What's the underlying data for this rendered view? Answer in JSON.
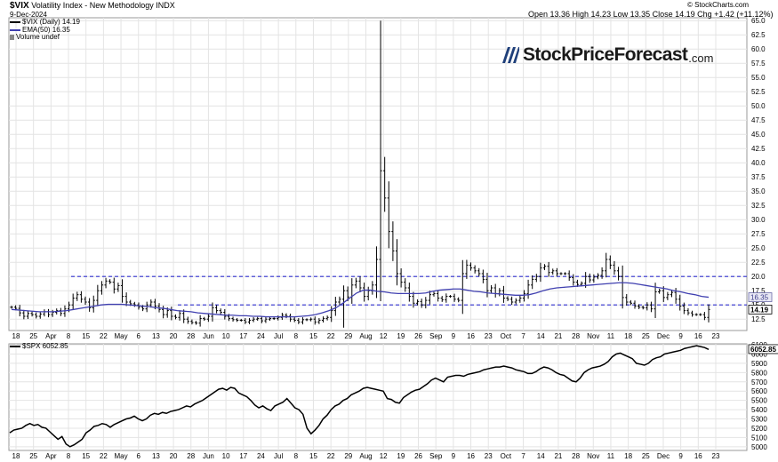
{
  "header": {
    "symbol": "$VIX",
    "name": "Volatility Index - New Methodology",
    "exchange": "INDX",
    "date": "9-Dec-2024",
    "ohlc_text": "Open 13.36  High 14.23  Low 13.35  Close 14.19  Chg +1.42 (+11.12%)",
    "source": "© StockCharts.com"
  },
  "legend": {
    "vix": "$VIX (Daily) 14.19",
    "ema": "EMA(50) 16.35",
    "volume": "Volume undef"
  },
  "spx_legend": "$SPX 6052.85",
  "logo": {
    "main": "StockPriceForecast",
    "suffix": ".com"
  },
  "colors": {
    "ema": "#4040b0",
    "dashed": "#3030d0",
    "price": "#000000",
    "grid": "#e4e4e4"
  },
  "chart_data": [
    {
      "type": "line",
      "title": "$VIX",
      "y_ticks": [
        "12.5",
        "15.0",
        "17.5",
        "20.0",
        "22.5",
        "25.0",
        "27.5",
        "30.0",
        "32.5",
        "35.0",
        "37.5",
        "40.0",
        "42.5",
        "45.0",
        "47.5",
        "50.0",
        "52.5",
        "55.0",
        "57.5",
        "60.0",
        "62.5",
        "65.0"
      ],
      "ylim": [
        10.5,
        65.5
      ],
      "last_value_labels": [
        {
          "value": 14.19,
          "label": "14.19",
          "style": "dark"
        },
        {
          "value": 16.35,
          "label": "16.35",
          "style": "light"
        }
      ],
      "horizontal_lines": [
        20.0,
        15.0
      ],
      "x_tick_labels": [
        "18",
        "25",
        "Apr",
        "8",
        "15",
        "22",
        "May",
        "6",
        "13",
        "20",
        "28",
        "Jun",
        "10",
        "17",
        "24",
        "Jul",
        "8",
        "15",
        "22",
        "29",
        "Aug",
        "12",
        "19",
        "26",
        "Sep",
        "9",
        "16",
        "23",
        "Oct",
        "7",
        "14",
        "21",
        "28",
        "Nov",
        "11",
        "18",
        "25",
        "Dec",
        "9",
        "16",
        "23"
      ],
      "series": [
        {
          "name": "$VIX",
          "kind": "ohlc",
          "values": [
            14.6,
            14.4,
            13.6,
            13.0,
            13.5,
            13.3,
            13.0,
            13.4,
            13.8,
            13.3,
            13.7,
            14.0,
            13.5,
            14.3,
            15.0,
            16.2,
            16.8,
            16.0,
            15.5,
            14.5,
            15.8,
            17.5,
            18.5,
            19.2,
            19.0,
            17.8,
            18.4,
            16.5,
            15.5,
            15.2,
            15.0,
            14.6,
            14.3,
            15.0,
            15.5,
            14.8,
            14.2,
            13.3,
            14.0,
            13.0,
            12.8,
            13.5,
            12.5,
            12.1,
            11.9,
            11.8,
            12.6,
            12.5,
            13.0,
            14.5,
            14.0,
            13.7,
            13.0,
            12.6,
            12.4,
            12.3,
            12.3,
            12.0,
            12.3,
            12.5,
            12.6,
            12.2,
            12.5,
            12.6,
            12.6,
            12.8,
            13.2,
            13.0,
            12.5,
            12.3,
            12.0,
            12.4,
            12.4,
            12.5,
            12.0,
            12.3,
            12.6,
            12.8,
            14.0,
            15.5,
            16.0,
            17.5,
            16.4,
            18.5,
            19.2,
            18.0,
            16.5,
            17.5,
            18.5,
            23.0,
            38.6,
            33.8,
            27.9,
            24.5,
            20.5,
            19.0,
            18.0,
            16.5,
            15.3,
            15.6,
            15.0,
            15.8,
            16.8,
            17.0,
            16.2,
            15.9,
            16.5,
            16.5,
            16.0,
            15.8,
            20.5,
            22.0,
            21.5,
            21.0,
            20.5,
            19.5,
            17.5,
            18.0,
            17.0,
            17.5,
            16.2,
            16.0,
            15.5,
            15.8,
            16.2,
            17.0,
            18.5,
            19.5,
            20.0,
            21.5,
            21.8,
            20.7,
            21.0,
            20.5,
            20.5,
            20.5,
            19.8,
            19.0,
            18.6,
            18.8,
            20.0,
            19.4,
            19.9,
            20.2,
            21.0,
            23.0,
            22.0,
            21.0,
            20.0,
            16.3,
            15.5,
            15.3,
            14.8,
            14.6,
            14.5,
            15.0,
            14.3,
            17.3,
            17.5,
            16.3,
            16.8,
            17.2,
            16.0,
            14.8,
            14.0,
            13.6,
            13.3,
            13.3,
            13.3,
            12.8,
            14.2
          ]
        },
        {
          "name": "EMA(50)",
          "kind": "line",
          "values": [
            14.2,
            14.1,
            14.0,
            13.9,
            13.8,
            13.8,
            13.8,
            13.9,
            14.0,
            14.2,
            14.4,
            14.6,
            14.8,
            15.0,
            15.1,
            15.1,
            15.1,
            15.0,
            14.9,
            14.8,
            14.7,
            14.5,
            14.4,
            14.2,
            14.0,
            13.9,
            13.8,
            13.6,
            13.5,
            13.4,
            13.3,
            13.2,
            13.2,
            13.1,
            13.1,
            13.0,
            13.0,
            12.9,
            12.9,
            12.9,
            12.9,
            12.9,
            13.0,
            13.1,
            13.3,
            13.6,
            14.0,
            14.5,
            15.3,
            16.2,
            17.1,
            17.6,
            17.6,
            17.4,
            17.3,
            17.1,
            17.0,
            17.0,
            17.0,
            17.0,
            17.1,
            17.4,
            17.6,
            17.7,
            17.8,
            17.8,
            17.6,
            17.4,
            17.3,
            17.1,
            17.0,
            16.9,
            16.8,
            16.7,
            16.7,
            16.8,
            17.1,
            17.5,
            17.8,
            18.0,
            18.1,
            18.2,
            18.3,
            18.4,
            18.5,
            18.6,
            18.7,
            18.8,
            18.9,
            18.9,
            18.8,
            18.6,
            18.4,
            18.2,
            18.0,
            17.8,
            17.5,
            17.3,
            17.0,
            16.8,
            16.5,
            16.35
          ]
        }
      ]
    },
    {
      "type": "line",
      "title": "$SPX",
      "y_ticks": [
        "5000",
        "5100",
        "5200",
        "5300",
        "5400",
        "5500",
        "5600",
        "5700",
        "5800",
        "5900",
        "6000",
        "6100"
      ],
      "ylim": [
        4960,
        6110
      ],
      "last_value_labels": [
        {
          "value": 6052.85,
          "label": "6052.85",
          "style": "dark"
        }
      ],
      "series": [
        {
          "name": "$SPX",
          "values": [
            5150,
            5180,
            5190,
            5200,
            5230,
            5250,
            5230,
            5240,
            5210,
            5200,
            5160,
            5120,
            5080,
            5110,
            5030,
            5000,
            5020,
            5050,
            5080,
            5150,
            5180,
            5220,
            5230,
            5250,
            5240,
            5210,
            5240,
            5260,
            5280,
            5300,
            5310,
            5330,
            5300,
            5280,
            5300,
            5340,
            5360,
            5350,
            5370,
            5360,
            5380,
            5390,
            5400,
            5420,
            5440,
            5430,
            5460,
            5480,
            5500,
            5530,
            5560,
            5590,
            5620,
            5630,
            5610,
            5640,
            5630,
            5580,
            5560,
            5540,
            5500,
            5450,
            5420,
            5440,
            5410,
            5390,
            5440,
            5460,
            5480,
            5520,
            5470,
            5420,
            5400,
            5350,
            5200,
            5140,
            5180,
            5230,
            5300,
            5340,
            5400,
            5440,
            5460,
            5500,
            5520,
            5560,
            5580,
            5600,
            5630,
            5640,
            5630,
            5620,
            5610,
            5600,
            5520,
            5510,
            5480,
            5470,
            5530,
            5560,
            5590,
            5610,
            5620,
            5650,
            5680,
            5720,
            5740,
            5720,
            5700,
            5750,
            5760,
            5770,
            5770,
            5760,
            5780,
            5790,
            5800,
            5810,
            5830,
            5840,
            5850,
            5860,
            5860,
            5870,
            5860,
            5850,
            5830,
            5820,
            5810,
            5790,
            5790,
            5810,
            5840,
            5860,
            5850,
            5830,
            5800,
            5780,
            5770,
            5740,
            5710,
            5700,
            5740,
            5800,
            5830,
            5850,
            5860,
            5870,
            5890,
            5920,
            5970,
            6000,
            6010,
            5990,
            5970,
            5950,
            5900,
            5890,
            5880,
            5900,
            5940,
            5960,
            5970,
            6000,
            6010,
            6020,
            6030,
            6040,
            6060,
            6070,
            6080,
            6090,
            6080,
            6070,
            6050
          ]
        }
      ]
    }
  ]
}
